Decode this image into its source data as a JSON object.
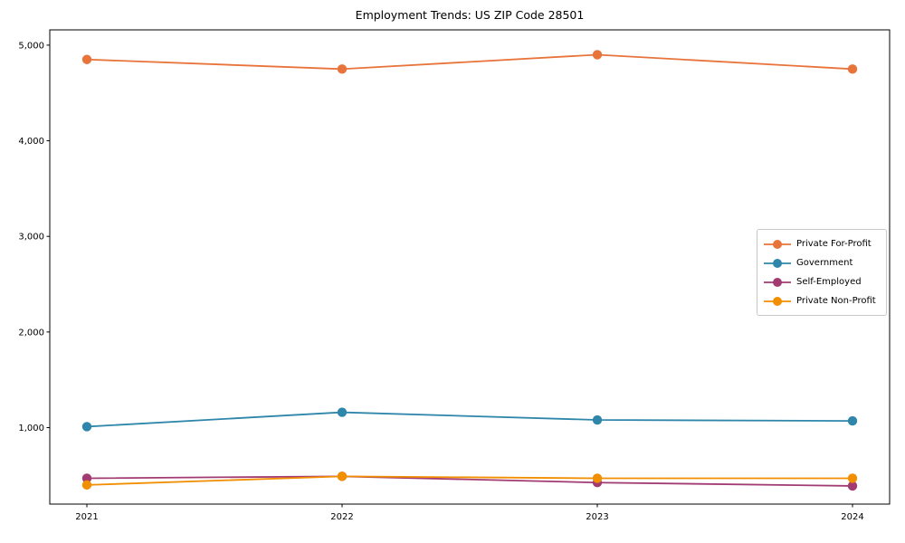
{
  "chart_data": {
    "type": "line",
    "title": "Employment Trends: US ZIP Code 28501",
    "x": [
      "2021",
      "2022",
      "2023",
      "2024"
    ],
    "x_tick_labels": [
      "2021",
      "2022",
      "2023",
      "2024"
    ],
    "y_ticks": [
      1000,
      2000,
      3000,
      4000,
      5000
    ],
    "y_tick_labels": [
      "1,000",
      "2,000",
      "3,000",
      "4,000",
      "5,000"
    ],
    "ylim": [
      200,
      5160
    ],
    "grid": false,
    "marker": "o",
    "legend_position": "center right",
    "series": [
      {
        "name": "Private For-Profit",
        "color": "#e8743b",
        "values": [
          4850,
          4750,
          4900,
          4750
        ]
      },
      {
        "name": "Government",
        "color": "#2e86ab",
        "values": [
          1010,
          1160,
          1080,
          1070
        ]
      },
      {
        "name": "Self-Employed",
        "color": "#a23b72",
        "values": [
          470,
          490,
          425,
          390
        ]
      },
      {
        "name": "Private Non-Profit",
        "color": "#f18f01",
        "values": [
          400,
          490,
          470,
          470
        ]
      }
    ],
    "frame_color": "#000000",
    "background_color": "#ffffff"
  }
}
